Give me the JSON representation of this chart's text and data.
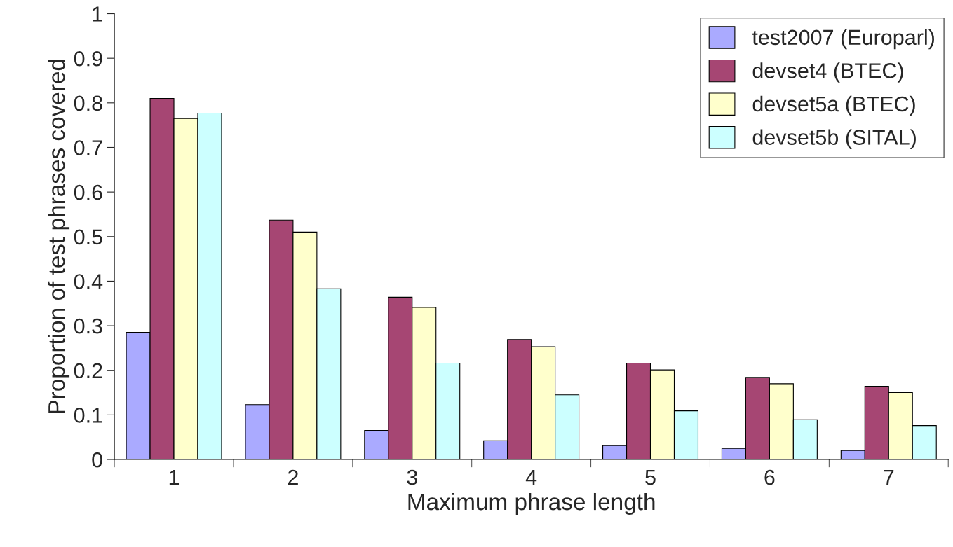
{
  "chart_data": {
    "type": "bar",
    "xlabel": "Maximum phrase length",
    "ylabel": "Proportion of test phrases covered",
    "categories": [
      "1",
      "2",
      "3",
      "4",
      "5",
      "6",
      "7"
    ],
    "series": [
      {
        "name": "test2007 (Europarl)",
        "color": "#aaaaff",
        "values": [
          0.285,
          0.123,
          0.065,
          0.042,
          0.031,
          0.025,
          0.02
        ]
      },
      {
        "name": "devset4 (BTEC)",
        "color": "#a64673",
        "values": [
          0.81,
          0.537,
          0.364,
          0.269,
          0.216,
          0.184,
          0.164
        ]
      },
      {
        "name": "devset5a (BTEC)",
        "color": "#ffffcc",
        "values": [
          0.765,
          0.51,
          0.341,
          0.253,
          0.201,
          0.17,
          0.15
        ]
      },
      {
        "name": "devset5b (SITAL)",
        "color": "#ccffff",
        "values": [
          0.777,
          0.383,
          0.216,
          0.145,
          0.109,
          0.089,
          0.076
        ]
      }
    ],
    "ylim": [
      0,
      1
    ],
    "yticks": [
      0,
      0.1,
      0.2,
      0.3,
      0.4,
      0.5,
      0.6,
      0.7,
      0.8,
      0.9,
      1
    ],
    "grid": false,
    "legend": "top right"
  }
}
